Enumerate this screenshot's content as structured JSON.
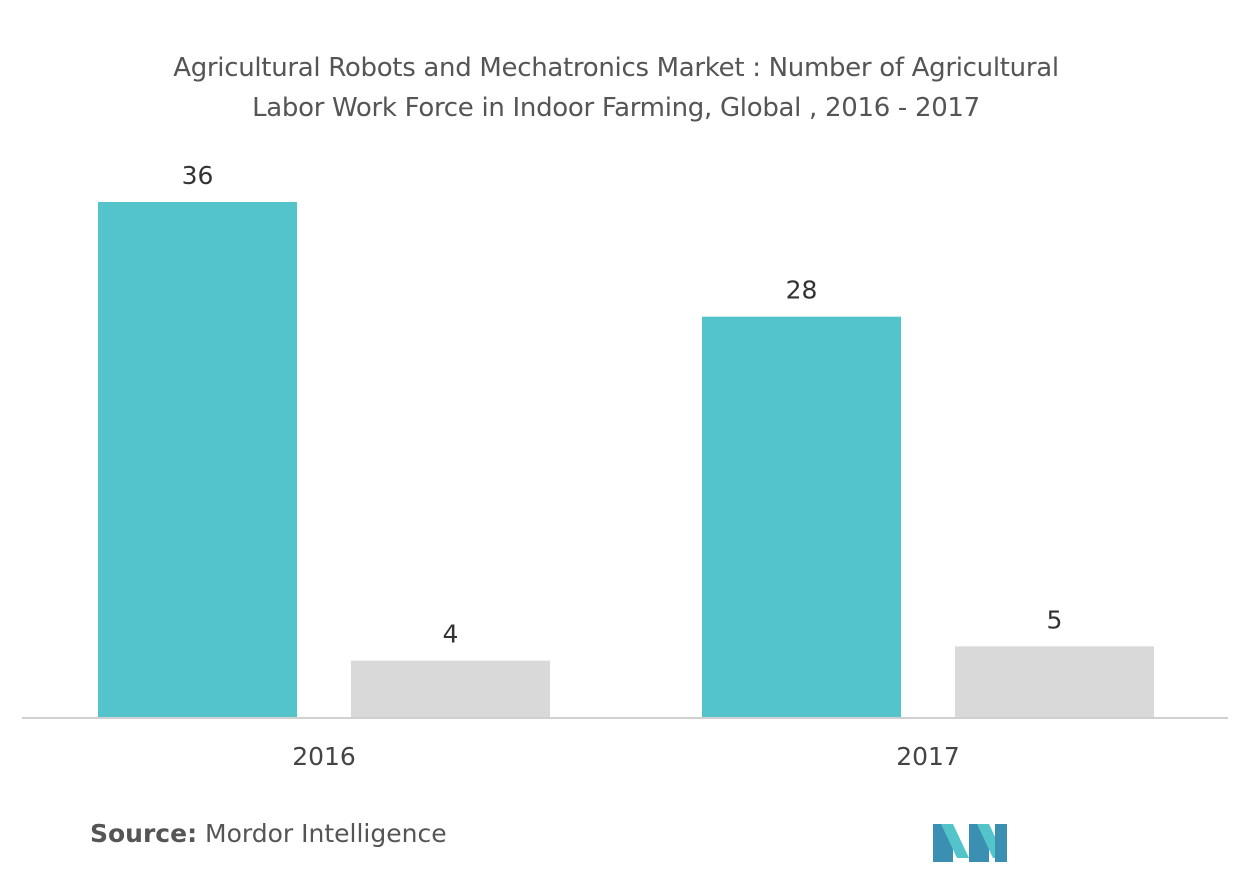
{
  "chart_data": {
    "type": "bar",
    "title_lines": [
      "Agricultural Robots and Mechatronics Market : Number of Agricultural",
      "Labor Work Force in Indoor Farming, Global , 2016 - 2017"
    ],
    "categories": [
      "2016",
      "2017"
    ],
    "series": [
      {
        "color": "#52c4ca",
        "values": [
          36,
          28
        ]
      },
      {
        "color": "#d9d9d9",
        "values": [
          4,
          5
        ]
      }
    ],
    "ylim": [
      0,
      36
    ],
    "grid": false,
    "legend": "none"
  },
  "source": {
    "label": "Source:",
    "text": "Mordor Intelligence"
  },
  "colors": {
    "axis": "#d0d0d0",
    "logo_left": "#3a8fb2",
    "logo_right": "#52c4ca"
  },
  "logo": {
    "icon": "mordor-intelligence-logo-icon"
  }
}
